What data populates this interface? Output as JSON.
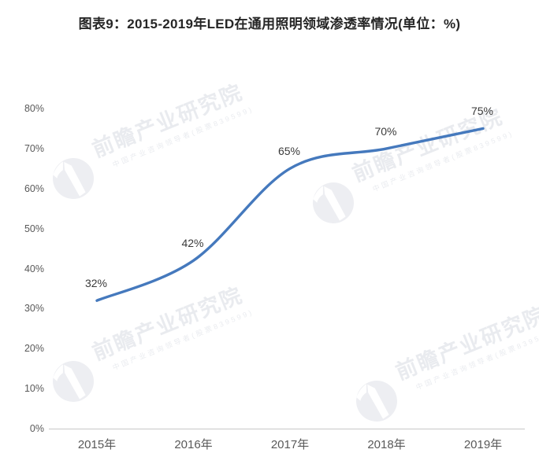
{
  "title": "图表9：2015-2019年LED在通用照明领域渗透率情况(单位：%)",
  "watermark": {
    "text": "前瞻产业研究院",
    "subtext": "中国产业咨询领导者(股票839599)"
  },
  "chart_data": {
    "type": "line",
    "title": "图表9：2015-2019年LED在通用照明领域渗透率情况(单位：%)",
    "categories": [
      "2015年",
      "2016年",
      "2017年",
      "2018年",
      "2019年"
    ],
    "values": [
      32,
      42,
      65,
      70,
      75
    ],
    "data_labels": [
      "32%",
      "42%",
      "65%",
      "70%",
      "75%"
    ],
    "y_ticks": [
      "0%",
      "10%",
      "20%",
      "30%",
      "40%",
      "50%",
      "60%",
      "70%",
      "80%"
    ],
    "ylim": [
      0,
      80
    ],
    "xlabel": "",
    "ylabel": "",
    "unit": "%",
    "line_color": "#4579BD",
    "axis_line_color": "#d6d6d6",
    "grid": false,
    "legend": false,
    "smooth": true
  }
}
